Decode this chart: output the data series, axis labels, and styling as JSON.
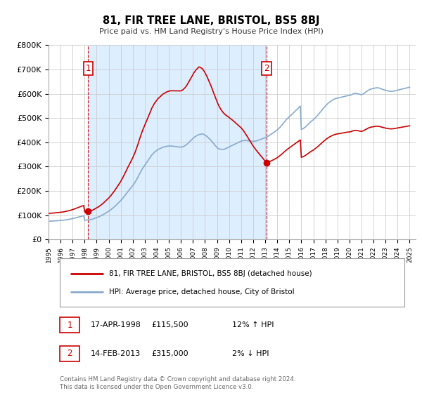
{
  "title": "81, FIR TREE LANE, BRISTOL, BS5 8BJ",
  "subtitle": "Price paid vs. HM Land Registry's House Price Index (HPI)",
  "ylabel_ticks": [
    "£0",
    "£100K",
    "£200K",
    "£300K",
    "£400K",
    "£500K",
    "£600K",
    "£700K",
    "£800K"
  ],
  "ytick_vals": [
    0,
    100000,
    200000,
    300000,
    400000,
    500000,
    600000,
    700000,
    800000
  ],
  "ylim": [
    0,
    800000
  ],
  "xlim_start": 1995.0,
  "xlim_end": 2025.5,
  "sale1_x": 1998.29,
  "sale1_y": 115500,
  "sale2_x": 2013.12,
  "sale2_y": 315000,
  "legend_line1": "81, FIR TREE LANE, BRISTOL, BS5 8BJ (detached house)",
  "legend_line2": "HPI: Average price, detached house, City of Bristol",
  "footer": "Contains HM Land Registry data © Crown copyright and database right 2024.\nThis data is licensed under the Open Government Licence v3.0.",
  "red_color": "#cc0000",
  "blue_color": "#88aacc",
  "shade_color": "#ddeeff",
  "table_row1": [
    "1",
    "17-APR-1998",
    "£115,500",
    "12% ↑ HPI"
  ],
  "table_row2": [
    "2",
    "14-FEB-2013",
    "£315,000",
    "2% ↓ HPI"
  ],
  "hpi_x": [
    1995.0,
    1995.08,
    1995.17,
    1995.25,
    1995.33,
    1995.42,
    1995.5,
    1995.58,
    1995.67,
    1995.75,
    1995.83,
    1995.92,
    1996.0,
    1996.08,
    1996.17,
    1996.25,
    1996.33,
    1996.42,
    1996.5,
    1996.58,
    1996.67,
    1996.75,
    1996.83,
    1996.92,
    1997.0,
    1997.08,
    1997.17,
    1997.25,
    1997.33,
    1997.42,
    1997.5,
    1997.58,
    1997.67,
    1997.75,
    1997.83,
    1997.92,
    1998.0,
    1998.08,
    1998.17,
    1998.25,
    1998.33,
    1998.42,
    1998.5,
    1998.58,
    1998.67,
    1998.75,
    1998.83,
    1998.92,
    1999.0,
    1999.08,
    1999.17,
    1999.25,
    1999.33,
    1999.42,
    1999.5,
    1999.58,
    1999.67,
    1999.75,
    1999.83,
    1999.92,
    2000.0,
    2000.08,
    2000.17,
    2000.25,
    2000.33,
    2000.42,
    2000.5,
    2000.58,
    2000.67,
    2000.75,
    2000.83,
    2000.92,
    2001.0,
    2001.08,
    2001.17,
    2001.25,
    2001.33,
    2001.42,
    2001.5,
    2001.58,
    2001.67,
    2001.75,
    2001.83,
    2001.92,
    2002.0,
    2002.08,
    2002.17,
    2002.25,
    2002.33,
    2002.42,
    2002.5,
    2002.58,
    2002.67,
    2002.75,
    2002.83,
    2002.92,
    2003.0,
    2003.08,
    2003.17,
    2003.25,
    2003.33,
    2003.42,
    2003.5,
    2003.58,
    2003.67,
    2003.75,
    2003.83,
    2003.92,
    2004.0,
    2004.08,
    2004.17,
    2004.25,
    2004.33,
    2004.42,
    2004.5,
    2004.58,
    2004.67,
    2004.75,
    2004.83,
    2004.92,
    2005.0,
    2005.08,
    2005.17,
    2005.25,
    2005.33,
    2005.42,
    2005.5,
    2005.58,
    2005.67,
    2005.75,
    2005.83,
    2005.92,
    2006.0,
    2006.08,
    2006.17,
    2006.25,
    2006.33,
    2006.42,
    2006.5,
    2006.58,
    2006.67,
    2006.75,
    2006.83,
    2006.92,
    2007.0,
    2007.08,
    2007.17,
    2007.25,
    2007.33,
    2007.42,
    2007.5,
    2007.58,
    2007.67,
    2007.75,
    2007.83,
    2007.92,
    2008.0,
    2008.08,
    2008.17,
    2008.25,
    2008.33,
    2008.42,
    2008.5,
    2008.58,
    2008.67,
    2008.75,
    2008.83,
    2008.92,
    2009.0,
    2009.08,
    2009.17,
    2009.25,
    2009.33,
    2009.42,
    2009.5,
    2009.58,
    2009.67,
    2009.75,
    2009.83,
    2009.92,
    2010.0,
    2010.08,
    2010.17,
    2010.25,
    2010.33,
    2010.42,
    2010.5,
    2010.58,
    2010.67,
    2010.75,
    2010.83,
    2010.92,
    2011.0,
    2011.08,
    2011.17,
    2011.25,
    2011.33,
    2011.42,
    2011.5,
    2011.58,
    2011.67,
    2011.75,
    2011.83,
    2011.92,
    2012.0,
    2012.08,
    2012.17,
    2012.25,
    2012.33,
    2012.42,
    2012.5,
    2012.58,
    2012.67,
    2012.75,
    2012.83,
    2012.92,
    2013.0,
    2013.08,
    2013.17,
    2013.25,
    2013.33,
    2013.42,
    2013.5,
    2013.58,
    2013.67,
    2013.75,
    2013.83,
    2013.92,
    2014.0,
    2014.08,
    2014.17,
    2014.25,
    2014.33,
    2014.42,
    2014.5,
    2014.58,
    2014.67,
    2014.75,
    2014.83,
    2014.92,
    2015.0,
    2015.08,
    2015.17,
    2015.25,
    2015.33,
    2015.42,
    2015.5,
    2015.58,
    2015.67,
    2015.75,
    2015.83,
    2015.92,
    2016.0,
    2016.08,
    2016.17,
    2016.25,
    2016.33,
    2016.42,
    2016.5,
    2016.58,
    2016.67,
    2016.75,
    2016.83,
    2016.92,
    2017.0,
    2017.08,
    2017.17,
    2017.25,
    2017.33,
    2017.42,
    2017.5,
    2017.58,
    2017.67,
    2017.75,
    2017.83,
    2017.92,
    2018.0,
    2018.08,
    2018.17,
    2018.25,
    2018.33,
    2018.42,
    2018.5,
    2018.58,
    2018.67,
    2018.75,
    2018.83,
    2018.92,
    2019.0,
    2019.08,
    2019.17,
    2019.25,
    2019.33,
    2019.42,
    2019.5,
    2019.58,
    2019.67,
    2019.75,
    2019.83,
    2019.92,
    2020.0,
    2020.08,
    2020.17,
    2020.25,
    2020.33,
    2020.42,
    2020.5,
    2020.58,
    2020.67,
    2020.75,
    2020.83,
    2020.92,
    2021.0,
    2021.08,
    2021.17,
    2021.25,
    2021.33,
    2021.42,
    2021.5,
    2021.58,
    2021.67,
    2021.75,
    2021.83,
    2021.92,
    2022.0,
    2022.08,
    2022.17,
    2022.25,
    2022.33,
    2022.42,
    2022.5,
    2022.58,
    2022.67,
    2022.75,
    2022.83,
    2022.92,
    2023.0,
    2023.08,
    2023.17,
    2023.25,
    2023.33,
    2023.42,
    2023.5,
    2023.58,
    2023.67,
    2023.75,
    2023.83,
    2023.92,
    2024.0,
    2024.08,
    2024.17,
    2024.25,
    2024.33,
    2024.42,
    2024.5,
    2024.58,
    2024.67,
    2024.75,
    2024.83,
    2024.92,
    2025.0
  ],
  "hpi_y": [
    75000,
    75200,
    75500,
    75700,
    75900,
    76100,
    76400,
    76700,
    77000,
    77300,
    77600,
    77900,
    78200,
    78600,
    79000,
    79500,
    80000,
    80600,
    81200,
    81900,
    82600,
    83400,
    84200,
    85100,
    86000,
    87000,
    88000,
    89100,
    90200,
    91300,
    92400,
    93500,
    94600,
    95700,
    96800,
    97900,
    79000,
    79500,
    80000,
    80500,
    81000,
    81500,
    82000,
    83000,
    84000,
    85500,
    87000,
    88500,
    90000,
    91500,
    93000,
    95000,
    97000,
    99000,
    101000,
    103500,
    106000,
    108500,
    111000,
    113500,
    116000,
    119000,
    122000,
    125500,
    129000,
    132500,
    136000,
    140000,
    144000,
    148000,
    152000,
    156000,
    160000,
    165000,
    170000,
    175000,
    180000,
    185500,
    191000,
    196500,
    202000,
    207000,
    212000,
    217000,
    222000,
    228000,
    234000,
    241000,
    248000,
    256000,
    264000,
    272000,
    280000,
    287000,
    294000,
    300000,
    306000,
    312000,
    318000,
    324000,
    330000,
    336000,
    342000,
    348000,
    353000,
    357000,
    361000,
    364000,
    367000,
    370000,
    372000,
    374000,
    376000,
    378000,
    380000,
    381000,
    382000,
    383000,
    384000,
    384500,
    385000,
    385200,
    385000,
    384500,
    384000,
    383500,
    383000,
    382500,
    382000,
    381500,
    381000,
    380500,
    380000,
    381000,
    382000,
    384000,
    386000,
    389000,
    392000,
    396000,
    400000,
    404000,
    408000,
    412000,
    416000,
    420000,
    423000,
    426000,
    428000,
    430000,
    432000,
    433000,
    434000,
    434500,
    434000,
    432000,
    430000,
    427000,
    424000,
    420000,
    416000,
    412000,
    408000,
    403000,
    398000,
    393000,
    388000,
    383000,
    378000,
    375000,
    373000,
    372000,
    371000,
    371000,
    371000,
    372000,
    373000,
    375000,
    377000,
    379000,
    381000,
    383000,
    385000,
    387000,
    389000,
    391000,
    393000,
    395000,
    397000,
    399000,
    401000,
    403000,
    405000,
    406000,
    407000,
    407500,
    407500,
    407500,
    407000,
    406500,
    406000,
    405500,
    405000,
    404500,
    404000,
    404500,
    405000,
    406000,
    407000,
    408500,
    410000,
    411500,
    413000,
    414500,
    416000,
    417500,
    419000,
    421000,
    423000,
    425500,
    428000,
    430500,
    433000,
    436000,
    439000,
    442000,
    445000,
    448000,
    451000,
    455000,
    459000,
    463000,
    468000,
    473000,
    478000,
    483000,
    488000,
    493000,
    497000,
    501000,
    505000,
    509000,
    513000,
    517000,
    521000,
    525000,
    529000,
    533000,
    537000,
    541000,
    545000,
    549000,
    453000,
    455000,
    457000,
    460000,
    463000,
    467000,
    471000,
    475000,
    479000,
    483000,
    487000,
    490000,
    493000,
    497000,
    501000,
    505000,
    510000,
    515000,
    520000,
    525000,
    530000,
    535000,
    540000,
    545000,
    550000,
    554000,
    558000,
    562000,
    565000,
    568000,
    571000,
    574000,
    576000,
    578000,
    580000,
    581000,
    582000,
    583000,
    584000,
    585000,
    586000,
    587000,
    588000,
    589000,
    590000,
    591000,
    592000,
    592500,
    593000,
    594000,
    596000,
    598000,
    600000,
    601000,
    602000,
    601000,
    600000,
    599000,
    598000,
    597000,
    596000,
    598000,
    600000,
    603000,
    606000,
    609000,
    612000,
    615000,
    617000,
    619000,
    620000,
    621000,
    622000,
    623000,
    624000,
    624500,
    624500,
    624000,
    623000,
    621500,
    620000,
    618500,
    617000,
    615500,
    614000,
    613000,
    612000,
    611000,
    610500,
    610000,
    610000,
    610500,
    611000,
    612000,
    613000,
    614000,
    615000,
    616000,
    617000,
    618000,
    619000,
    620000,
    621000,
    622000,
    623000,
    624000,
    625000,
    626000,
    627000
  ]
}
